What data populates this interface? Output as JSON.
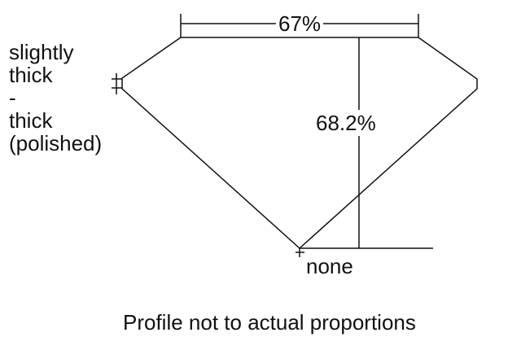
{
  "girdle_label": [
    "slightly",
    "thick",
    "-",
    "thick",
    "(polished)"
  ],
  "table_percent": "67%",
  "depth_percent": "68.2%",
  "culet_label": "none",
  "caption": "Profile not to actual proportions",
  "line_color": "#111111"
}
